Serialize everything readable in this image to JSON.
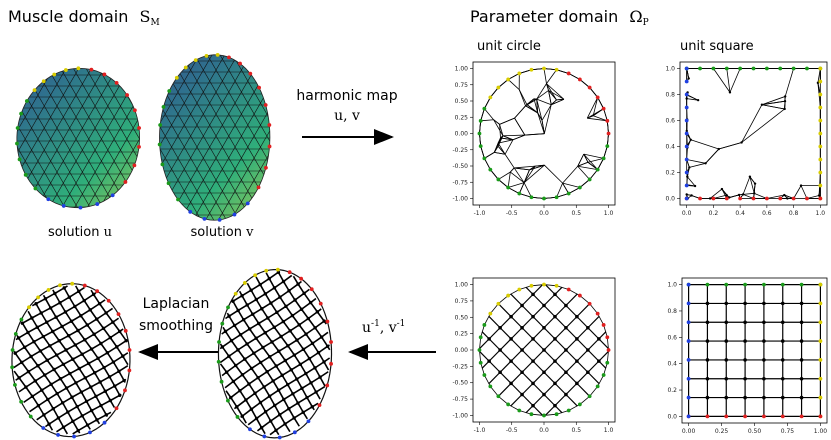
{
  "header": {
    "muscle": {
      "text": "Muscle domain",
      "symbol": "S",
      "sub": "M"
    },
    "parameter": {
      "text": "Parameter domain",
      "symbol": "Ω",
      "sub": "P"
    }
  },
  "columns": [
    "unit circle",
    "unit square"
  ],
  "top_arrow": {
    "label": "harmonic map",
    "vars": "u, v"
  },
  "bottom_arrow": {
    "label": [
      "Laplacian",
      "smoothing"
    ],
    "vars": [
      "u",
      "-1",
      ", v",
      "-1"
    ]
  },
  "solutions": [
    {
      "text": "solution",
      "var": "u"
    },
    {
      "text": "solution",
      "var": "v"
    }
  ],
  "plots": [
    {
      "yticks": [
        "1.00",
        "0.75",
        "0.50",
        "0.25",
        "0.00",
        "-0.25",
        "-0.50",
        "-0.75",
        "-1.00"
      ],
      "xticks": [
        "-1.0",
        "-0.5",
        "0.0",
        "0.5",
        "1.0"
      ]
    },
    {
      "yticks": [
        "1.0",
        "0.8",
        "0.6",
        "0.4",
        "0.2",
        "0.0"
      ],
      "xticks": [
        "0.0",
        "0.2",
        "0.4",
        "0.6",
        "0.8",
        "1.0"
      ]
    },
    {
      "yticks": [
        "1.00",
        "0.75",
        "0.50",
        "0.25",
        "0.00",
        "-0.25",
        "-0.50",
        "-0.75",
        "-1.00"
      ],
      "xticks": [
        "-1.0",
        "-0.5",
        "0.0",
        "0.5",
        "1.0"
      ]
    },
    {
      "yticks": [
        "1.0",
        "0.8",
        "0.6",
        "0.4",
        "0.2",
        "0.0"
      ],
      "xticks": [
        "0.00",
        "0.25",
        "0.50",
        "0.75",
        "1.00"
      ]
    }
  ]
}
